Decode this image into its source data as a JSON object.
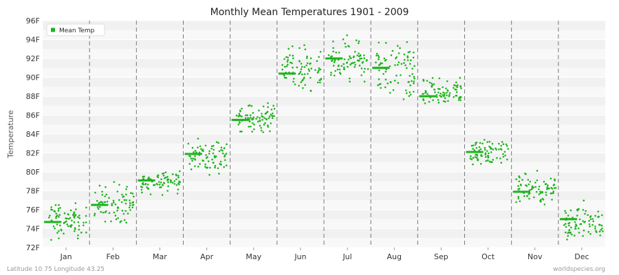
{
  "chart_data": {
    "type": "scatter",
    "title": "Monthly Mean Temperatures 1901 - 2009",
    "ylabel": "Temperature",
    "xlabel": "",
    "months": [
      "Jan",
      "Feb",
      "Mar",
      "Apr",
      "May",
      "Jun",
      "Jul",
      "Aug",
      "Sep",
      "Oct",
      "Nov",
      "Dec"
    ],
    "y_ticks": [
      "72F",
      "74F",
      "76F",
      "78F",
      "80F",
      "82F",
      "84F",
      "86F",
      "88F",
      "90F",
      "92F",
      "94F",
      "96F"
    ],
    "ylim": [
      72,
      96
    ],
    "grid": true,
    "legend": {
      "position": "top-left",
      "label": "Mean Temp"
    },
    "series_color": "#1db31d",
    "series": [
      {
        "name": "Mean Temp",
        "monthly_means": [
          74.7,
          76.5,
          79.1,
          81.9,
          85.5,
          90.4,
          92.0,
          91.0,
          88.0,
          82.1,
          77.9,
          75.0
        ],
        "spread_ranges": [
          [
            72.2,
            77.4
          ],
          [
            73.8,
            79.6
          ],
          [
            77.2,
            80.6
          ],
          [
            79.2,
            83.9
          ],
          [
            83.9,
            87.9
          ],
          [
            88.0,
            94.5
          ],
          [
            88.5,
            94.7
          ],
          [
            85.5,
            94.3
          ],
          [
            86.3,
            91.0
          ],
          [
            80.0,
            84.1
          ],
          [
            76.0,
            80.6
          ],
          [
            71.6,
            77.1
          ]
        ]
      }
    ],
    "num_years": 109
  },
  "footer": {
    "left": "Latitude 10.75 Longitude 43.25",
    "right": "worldspecies.org"
  }
}
